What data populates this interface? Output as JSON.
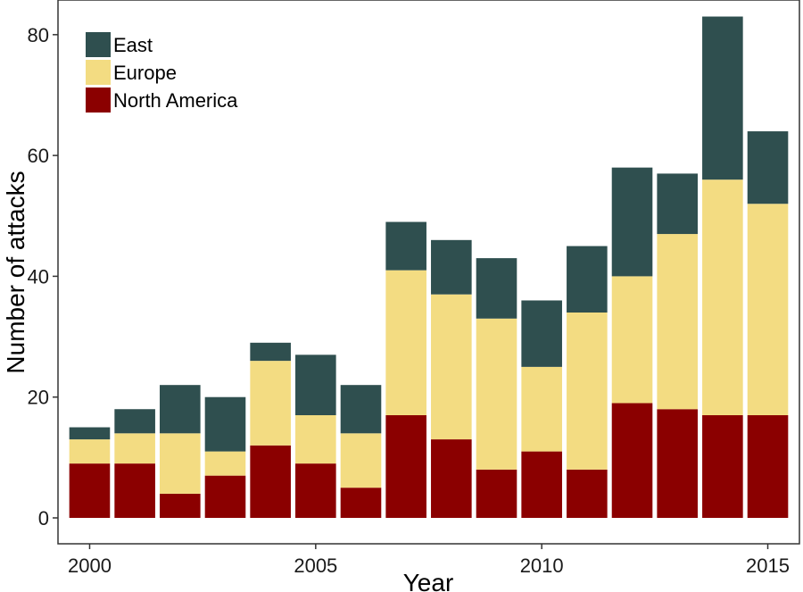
{
  "chart_data": {
    "type": "bar",
    "stacked": true,
    "title": "",
    "xlabel": "Year",
    "ylabel": "Number of attacks",
    "ylim": [
      0,
      85
    ],
    "xlim": [
      1999.3,
      2015.7
    ],
    "x_ticks": [
      2000,
      2005,
      2010,
      2015
    ],
    "y_ticks": [
      0,
      20,
      40,
      60,
      80
    ],
    "grid": false,
    "legend_position": "top-left",
    "x": [
      2000,
      2001,
      2002,
      2003,
      2004,
      2005,
      2006,
      2007,
      2008,
      2009,
      2010,
      2011,
      2012,
      2013,
      2014,
      2015
    ],
    "series": [
      {
        "name": "North America",
        "color": "#8b0000",
        "values": [
          9,
          9,
          4,
          7,
          12,
          9,
          5,
          17,
          13,
          8,
          11,
          8,
          19,
          18,
          17,
          17
        ]
      },
      {
        "name": "Europe",
        "color": "#f3dc82",
        "values": [
          4,
          5,
          10,
          4,
          14,
          8,
          9,
          24,
          24,
          25,
          14,
          26,
          21,
          29,
          39,
          35
        ]
      },
      {
        "name": "East",
        "color": "#2f4f4f",
        "values": [
          2,
          4,
          8,
          9,
          3,
          10,
          8,
          8,
          9,
          10,
          11,
          11,
          18,
          10,
          27,
          12
        ]
      }
    ],
    "legend_order": [
      "East",
      "Europe",
      "North America"
    ]
  }
}
